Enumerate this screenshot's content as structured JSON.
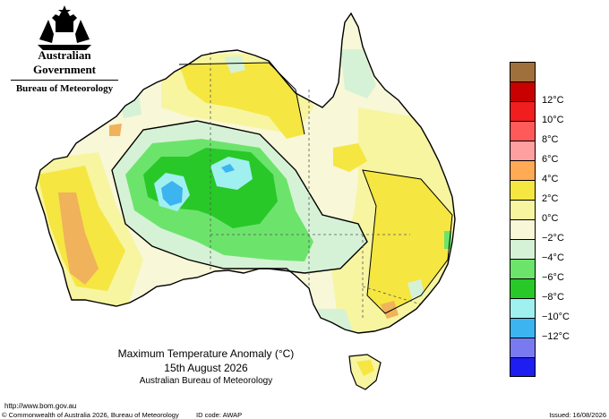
{
  "header": {
    "crest_icon": "commonwealth-coat-of-arms-icon",
    "government": "Australian Government",
    "bureau": "Bureau of Meteorology"
  },
  "legend": {
    "items": [
      {
        "label": "",
        "color": "#a0703c"
      },
      {
        "label": "12°C",
        "color": "#c80000"
      },
      {
        "label": "10°C",
        "color": "#f01e1e"
      },
      {
        "label": "8°C",
        "color": "#ff5a5a"
      },
      {
        "label": "6°C",
        "color": "#ffa0a0"
      },
      {
        "label": "4°C",
        "color": "#ffaa55"
      },
      {
        "label": "2°C",
        "color": "#f5e642"
      },
      {
        "label": "0°C",
        "color": "#f7f5a0"
      },
      {
        "label": "−2°C",
        "color": "#f8f7d8"
      },
      {
        "label": "−4°C",
        "color": "#d6f2d6"
      },
      {
        "label": "−6°C",
        "color": "#6ce46c"
      },
      {
        "label": "−8°C",
        "color": "#28c828"
      },
      {
        "label": "−10°C",
        "color": "#a0f0f0"
      },
      {
        "label": "−12°C",
        "color": "#3cb4f0"
      },
      {
        "label": "",
        "color": "#7a7af0"
      },
      {
        "label": "",
        "color": "#1e1ef0"
      }
    ]
  },
  "map": {
    "colors": {
      "land_base": "#f8f7d8",
      "warm_light": "#f7f5a0",
      "warm": "#f5e642",
      "hot": "#f0b25a",
      "cool_light": "#d6f2d6",
      "cool": "#6ce46c",
      "cooler": "#28c828",
      "cold": "#a0f0f0",
      "colder": "#3cb4f0",
      "ocean": "#ffffff"
    }
  },
  "title": {
    "line1": "Maximum Temperature Anomaly (°C)",
    "line2": "15th August 2026",
    "line3": "Australian Bureau of Meteorology"
  },
  "footer": {
    "url": "http://www.bom.gov.au",
    "copyright": "© Commonwealth of Australia 2026, Bureau of Meteorology",
    "id_code": "ID code: AWAP",
    "issued": "Issued: 16/08/2026"
  }
}
